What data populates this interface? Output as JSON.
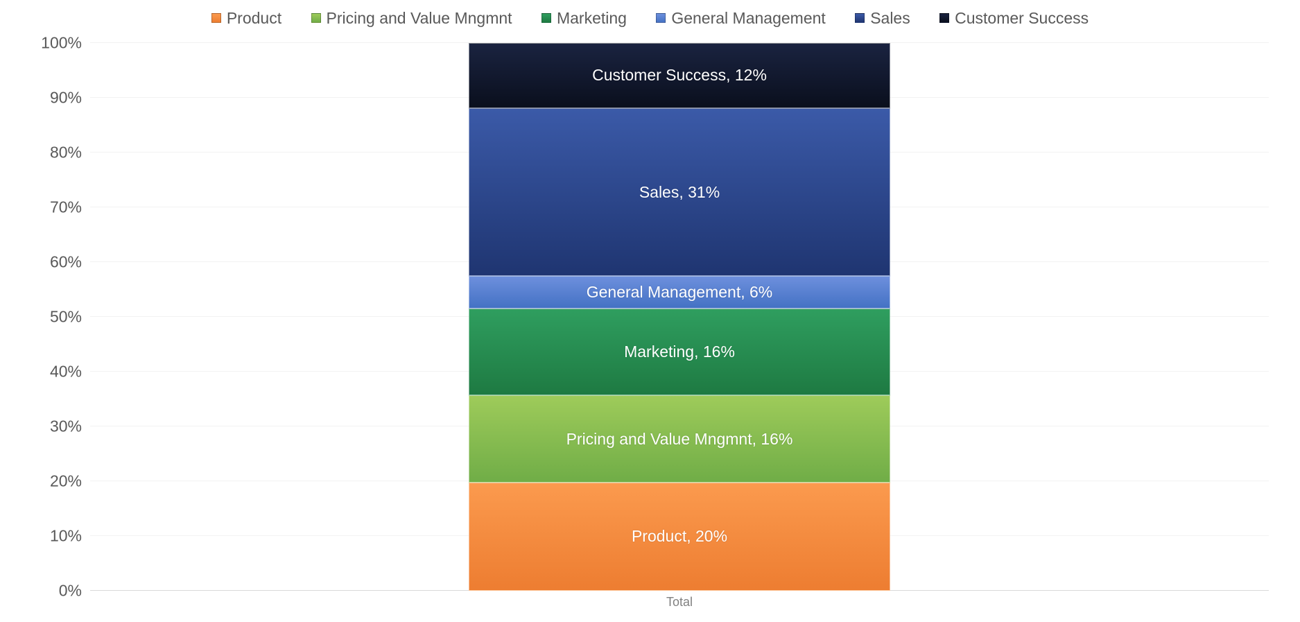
{
  "chart": {
    "type": "stacked-bar-100",
    "background_color": "#ffffff",
    "plot_bg_color": "#ffffff",
    "grid_color": "#d9d9d9",
    "grid_alt_color": "#f2f2f2",
    "axis_font_color": "#595959",
    "legend_font_color": "#595959",
    "legend_fontsize": 23,
    "axis_fontsize": 23,
    "data_label_fontsize": 23,
    "data_label_color": "#ffffff",
    "x_category_label": "Total",
    "x_category_fontsize": 18,
    "x_category_color": "#808080",
    "ylim": [
      0,
      100
    ],
    "ytick_step": 10,
    "yticks": [
      "0%",
      "10%",
      "20%",
      "30%",
      "40%",
      "50%",
      "60%",
      "70%",
      "80%",
      "90%",
      "100%"
    ],
    "bar_width_ratio": 0.36,
    "series_order": [
      "product",
      "pricing",
      "marketing",
      "genmgmt",
      "sales",
      "custsuccess"
    ],
    "series": {
      "product": {
        "legend": "Product",
        "label": "Product, 20%",
        "value": 20,
        "color_top": "#fb9a4e",
        "color_bottom": "#ed7d31"
      },
      "pricing": {
        "legend": "Pricing and Value Mngmnt",
        "label": "Pricing and Value Mngmnt, 16%",
        "value": 16,
        "color_top": "#9ecb5a",
        "color_bottom": "#70ad47"
      },
      "marketing": {
        "legend": "Marketing",
        "label": "Marketing, 16%",
        "value": 16,
        "color_top": "#2f9e5f",
        "color_bottom": "#1e7a42"
      },
      "genmgmt": {
        "legend": "General Management",
        "label": "General Management, 6%",
        "value": 6,
        "color_top": "#6d8fdd",
        "color_bottom": "#4472c4"
      },
      "sales": {
        "legend": "Sales",
        "label": "Sales, 31%",
        "value": 31,
        "color_top": "#3b5aa8",
        "color_bottom": "#1f3571"
      },
      "custsuccess": {
        "legend": "Customer Success",
        "label": "Customer Success, 12%",
        "value": 12,
        "color_top": "#1a2340",
        "color_bottom": "#0a0f1d"
      }
    }
  }
}
